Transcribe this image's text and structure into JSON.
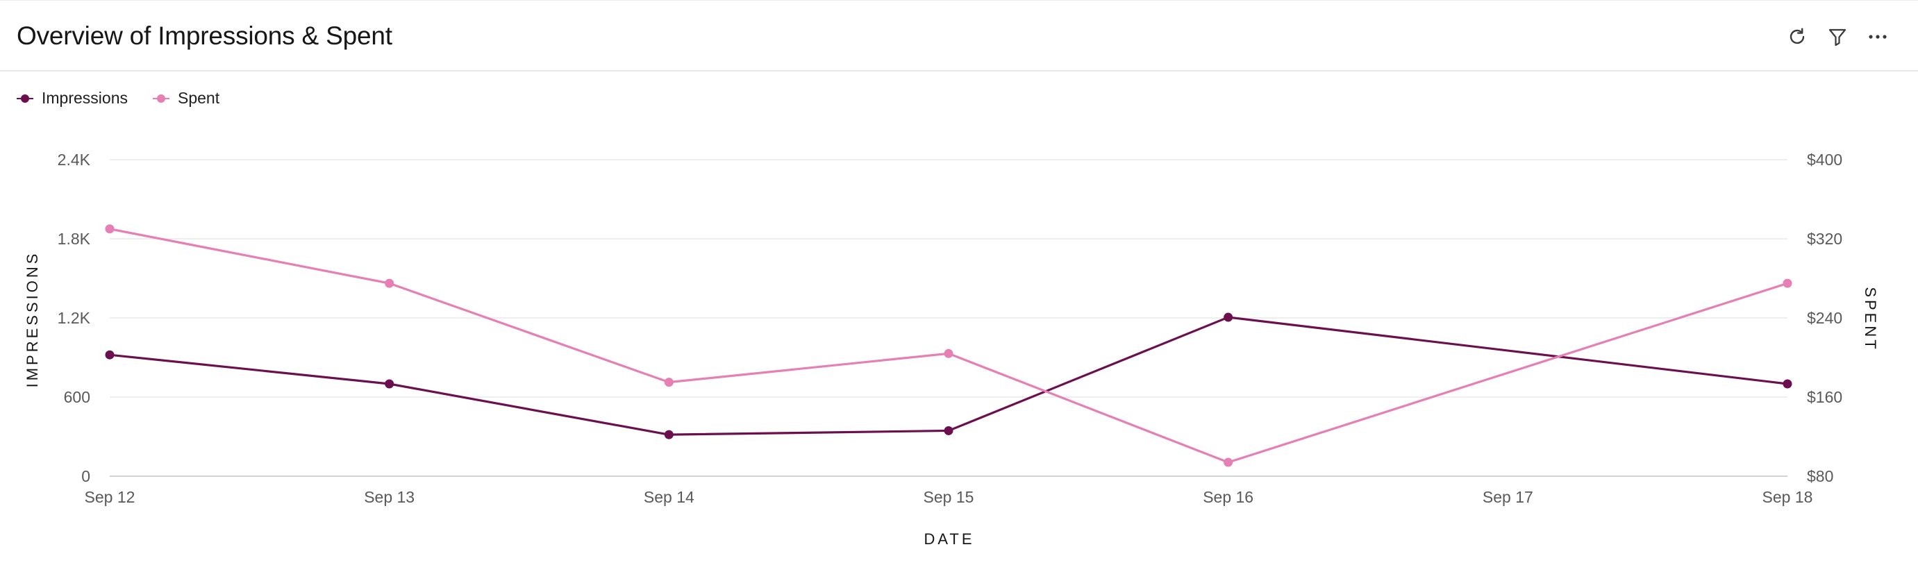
{
  "header": {
    "title": "Overview of Impressions & Spent",
    "tools": [
      {
        "name": "refresh-icon"
      },
      {
        "name": "filter-icon"
      },
      {
        "name": "more-options-icon"
      }
    ]
  },
  "legend": {
    "items": [
      {
        "label": "Impressions",
        "color": "#6b0f4f"
      },
      {
        "label": "Spent",
        "color": "#e57fb4"
      }
    ]
  },
  "chart_data": {
    "type": "line",
    "xlabel": "DATE",
    "ylabel": "IMPRESSIONS",
    "y2label": "SPENT",
    "categories": [
      "Sep 12",
      "Sep 13",
      "Sep 14",
      "Sep 15",
      "Sep 16",
      "Sep 17",
      "Sep 18"
    ],
    "y_ticks": [
      "0",
      "600",
      "1.2K",
      "1.8K",
      "2.4K"
    ],
    "y2_ticks": [
      "$80",
      "$160",
      "$240",
      "$320",
      "$400"
    ],
    "ylim": [
      0,
      2400
    ],
    "y2lim": [
      80,
      400
    ],
    "grid": true,
    "legend_position": "top-left",
    "series": [
      {
        "name": "Impressions",
        "axis": "left",
        "color": "#6b0f4f",
        "points": [
          {
            "x": "Sep 12",
            "y": 920
          },
          {
            "x": "Sep 13",
            "y": 700
          },
          {
            "x": "Sep 14",
            "y": 315
          },
          {
            "x": "Sep 15",
            "y": 345
          },
          {
            "x": "Sep 16",
            "y": 1205
          },
          {
            "x": "Sep 18",
            "y": 700
          }
        ]
      },
      {
        "name": "Spent",
        "axis": "right",
        "color": "#e57fb4",
        "points": [
          {
            "x": "Sep 12",
            "y": 330
          },
          {
            "x": "Sep 13",
            "y": 275
          },
          {
            "x": "Sep 14",
            "y": 175
          },
          {
            "x": "Sep 15",
            "y": 204
          },
          {
            "x": "Sep 16",
            "y": 94
          },
          {
            "x": "Sep 18",
            "y": 275
          }
        ]
      }
    ]
  }
}
